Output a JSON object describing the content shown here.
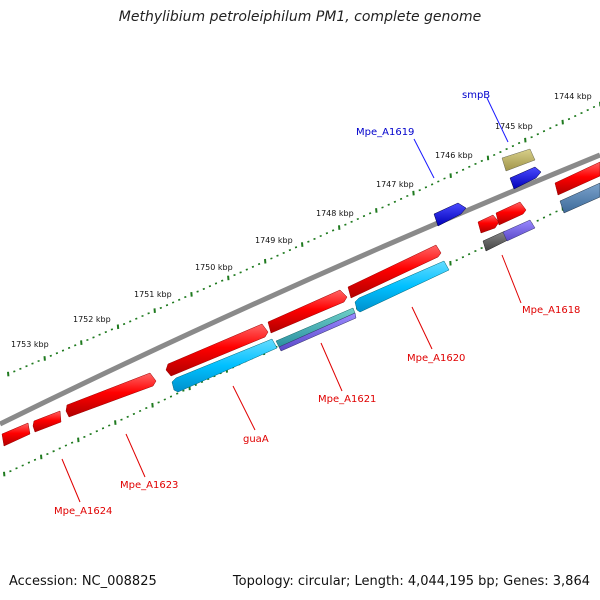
{
  "title": "Methylibium petroleiphilum PM1, complete genome",
  "footer": {
    "accession": "Accession: NC_008825",
    "topology": "Topology: circular; Length: 4,044,195 bp; Genes: 3,864"
  },
  "scale_labels": [
    "1744 kbp",
    "1745 kbp",
    "1746 kbp",
    "1747 kbp",
    "1748 kbp",
    "1749 kbp",
    "1750 kbp",
    "1751 kbp",
    "1752 kbp",
    "1753 kbp"
  ],
  "gene_labels": {
    "smpB": "smpB",
    "mpe_a1619": "Mpe_A1619",
    "mpe_a1618": "Mpe_A1618",
    "mpe_a1620": "Mpe_A1620",
    "mpe_a1621": "Mpe_A1621",
    "guaA": "guaA",
    "mpe_a1623": "Mpe_A1623",
    "mpe_a1624": "Mpe_A1624"
  },
  "colors": {
    "forward_gene": "#ff0000",
    "reverse_gene": "#00c0ff",
    "highlight_gene": "#0000ff",
    "backbone": "#808080",
    "tick": "#1f7a1f",
    "label_red": "#e00000",
    "label_blue": "#0000cc"
  }
}
